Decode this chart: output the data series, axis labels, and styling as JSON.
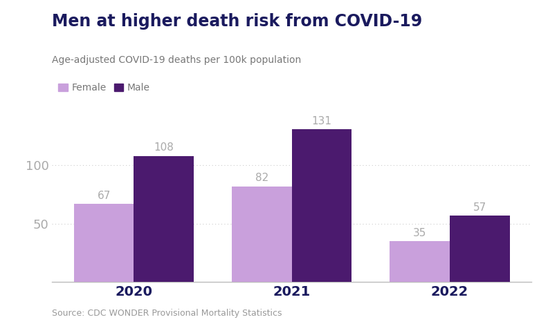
{
  "title": "Men at higher death risk from COVID-19",
  "subtitle": "Age-adjusted COVID-19 deaths per 100k population",
  "source": "Source: CDC WONDER Provisional Mortality Statistics",
  "categories": [
    "2020",
    "2021",
    "2022"
  ],
  "female_values": [
    67,
    82,
    35
  ],
  "male_values": [
    108,
    131,
    57
  ],
  "female_color": "#c9a0dc",
  "male_color": "#4b1a6e",
  "label_color": "#aaaaaa",
  "title_color": "#1a1a5e",
  "subtitle_color": "#777777",
  "source_color": "#999999",
  "background_color": "#ffffff",
  "yticks": [
    50,
    100
  ],
  "ylim": [
    0,
    150
  ],
  "bar_width": 0.38,
  "title_fontsize": 17,
  "subtitle_fontsize": 10,
  "tick_fontsize": 13,
  "label_fontsize": 11,
  "source_fontsize": 9,
  "legend_fontsize": 10,
  "grid_color": "#cccccc",
  "axis_color": "#bbbbbb"
}
